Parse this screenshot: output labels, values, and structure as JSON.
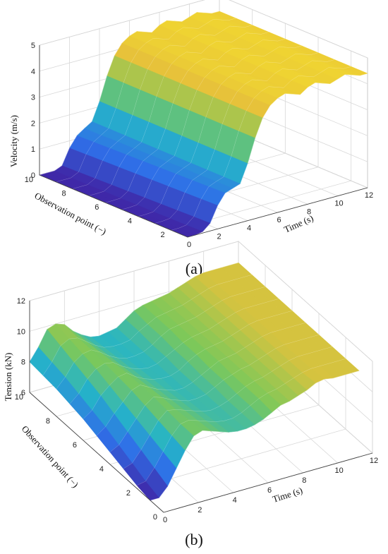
{
  "chart_data": [
    {
      "type": "surface3d",
      "panel": "a",
      "caption": "(a)",
      "xlabel": "Time (s)",
      "ylabel": "Observation point (−)",
      "zlabel": "Velocity (m/s)",
      "xticks": [
        0,
        2,
        4,
        6,
        8,
        10,
        12
      ],
      "yticks": [
        2,
        4,
        6,
        8,
        10
      ],
      "zticks": [
        0,
        1,
        2,
        3,
        4,
        5
      ],
      "xlim": [
        0,
        12
      ],
      "ylim": [
        1,
        10
      ],
      "zlim": [
        0,
        5
      ],
      "colormap": [
        "#3f28a8",
        "#2f6fe8",
        "#25b4c8",
        "#7cc85a",
        "#e7c23a",
        "#f5e12c"
      ],
      "observation_points": [
        1,
        2,
        3,
        4,
        5,
        6,
        7,
        8,
        9,
        10
      ],
      "time": [
        0,
        0.5,
        1,
        1.5,
        2,
        2.5,
        3,
        3.5,
        4,
        4.5,
        5,
        5.5,
        6,
        6.5,
        7,
        7.5,
        8,
        8.5,
        9,
        9.5,
        10,
        10.5,
        11,
        11.5,
        12
      ],
      "series": [
        {
          "values": [
            0,
            0,
            0.05,
            0.3,
            0.9,
            1.3,
            1.4,
            1.5,
            2.2,
            3.1,
            3.8,
            4.2,
            4.4,
            4.5,
            4.4,
            4.3,
            4.5,
            4.6,
            4.5,
            4.4,
            4.5,
            4.6,
            4.5,
            4.4,
            4.4
          ]
        },
        {
          "values": [
            0,
            0,
            0.04,
            0.28,
            0.88,
            1.28,
            1.4,
            1.5,
            2.2,
            3.1,
            3.8,
            4.2,
            4.4,
            4.5,
            4.4,
            4.3,
            4.5,
            4.6,
            4.5,
            4.4,
            4.5,
            4.6,
            4.5,
            4.4,
            4.4
          ]
        },
        {
          "values": [
            0,
            0,
            0.03,
            0.26,
            0.86,
            1.26,
            1.38,
            1.5,
            2.2,
            3.1,
            3.8,
            4.2,
            4.4,
            4.5,
            4.4,
            4.3,
            4.5,
            4.6,
            4.5,
            4.4,
            4.5,
            4.6,
            4.5,
            4.4,
            4.4
          ]
        },
        {
          "values": [
            0,
            0,
            0.02,
            0.24,
            0.84,
            1.24,
            1.38,
            1.5,
            2.2,
            3.1,
            3.8,
            4.2,
            4.4,
            4.5,
            4.4,
            4.3,
            4.5,
            4.6,
            4.5,
            4.4,
            4.5,
            4.6,
            4.5,
            4.4,
            4.4
          ]
        },
        {
          "values": [
            0,
            0,
            0.02,
            0.22,
            0.82,
            1.22,
            1.36,
            1.5,
            2.2,
            3.1,
            3.8,
            4.2,
            4.4,
            4.5,
            4.4,
            4.3,
            4.5,
            4.6,
            4.5,
            4.4,
            4.5,
            4.6,
            4.5,
            4.4,
            4.4
          ]
        },
        {
          "values": [
            0,
            0,
            0.01,
            0.2,
            0.8,
            1.2,
            1.36,
            1.5,
            2.2,
            3.1,
            3.8,
            4.2,
            4.4,
            4.5,
            4.4,
            4.3,
            4.5,
            4.6,
            4.5,
            4.4,
            4.5,
            4.6,
            4.5,
            4.4,
            4.4
          ]
        },
        {
          "values": [
            0,
            0,
            0.01,
            0.18,
            0.78,
            1.18,
            1.34,
            1.5,
            2.2,
            3.1,
            3.8,
            4.2,
            4.4,
            4.5,
            4.4,
            4.3,
            4.5,
            4.6,
            4.5,
            4.4,
            4.5,
            4.6,
            4.5,
            4.4,
            4.4
          ]
        },
        {
          "values": [
            0,
            0,
            0.0,
            0.16,
            0.76,
            1.16,
            1.34,
            1.5,
            2.2,
            3.1,
            3.8,
            4.2,
            4.4,
            4.5,
            4.4,
            4.3,
            4.5,
            4.6,
            4.5,
            4.4,
            4.5,
            4.6,
            4.5,
            4.4,
            4.4
          ]
        },
        {
          "values": [
            0,
            0,
            0.0,
            0.14,
            0.74,
            1.14,
            1.32,
            1.5,
            2.2,
            3.1,
            3.8,
            4.2,
            4.4,
            4.5,
            4.4,
            4.3,
            4.5,
            4.6,
            4.5,
            4.4,
            4.5,
            4.6,
            4.5,
            4.4,
            4.4
          ]
        },
        {
          "values": [
            0,
            0,
            0.0,
            0.12,
            0.72,
            1.12,
            1.32,
            1.5,
            2.2,
            3.1,
            3.8,
            4.2,
            4.4,
            4.5,
            4.4,
            4.3,
            4.5,
            4.6,
            4.5,
            4.4,
            4.5,
            4.6,
            4.5,
            4.4,
            4.4
          ]
        }
      ]
    },
    {
      "type": "surface3d",
      "panel": "b",
      "caption": "(b)",
      "xlabel": "Time (s)",
      "ylabel": "Observation point (−)",
      "zlabel": "Tension (kN)",
      "xticks": [
        0,
        2,
        4,
        6,
        8,
        10,
        12
      ],
      "yticks": [
        0,
        2,
        4,
        6,
        8,
        10
      ],
      "zticks": [
        6,
        8,
        10,
        12
      ],
      "xlim": [
        0,
        12
      ],
      "ylim": [
        0,
        10
      ],
      "zlim": [
        6,
        12
      ],
      "colormap": [
        "#3f28a8",
        "#2f6fe8",
        "#25b4c8",
        "#7cc85a",
        "#e7c23a",
        "#f5e12c"
      ],
      "observation_points": [
        1,
        2,
        3,
        4,
        5,
        6,
        7,
        8,
        9,
        10
      ],
      "time": [
        0,
        0.5,
        1,
        1.5,
        2,
        2.5,
        3,
        3.5,
        4,
        4.5,
        5,
        5.5,
        6,
        6.5,
        7,
        7.5,
        8,
        8.5,
        9,
        9.5,
        10,
        10.5,
        11,
        11.5,
        12
      ],
      "series": [
        {
          "values": [
            6.0,
            6.0,
            6.6,
            7.6,
            8.6,
            9.4,
            9.6,
            9.4,
            9.2,
            9.0,
            8.9,
            8.9,
            9.0,
            9.2,
            9.5,
            9.8,
            9.9,
            10.1,
            10.3,
            10.6,
            10.7,
            10.6,
            10.6,
            10.6,
            10.6
          ]
        },
        {
          "values": [
            6.2,
            6.3,
            7.0,
            7.9,
            8.8,
            9.4,
            9.5,
            9.3,
            9.1,
            8.9,
            8.8,
            8.8,
            9.0,
            9.3,
            9.6,
            9.8,
            9.9,
            10.1,
            10.3,
            10.5,
            10.6,
            10.6,
            10.6,
            10.6,
            10.6
          ]
        },
        {
          "values": [
            6.5,
            6.7,
            7.4,
            8.2,
            9.0,
            9.5,
            9.4,
            9.2,
            9.0,
            8.8,
            8.7,
            8.8,
            9.0,
            9.3,
            9.6,
            9.8,
            9.9,
            10.1,
            10.3,
            10.5,
            10.6,
            10.6,
            10.6,
            10.6,
            10.6
          ]
        },
        {
          "values": [
            6.8,
            7.1,
            7.8,
            8.5,
            9.2,
            9.6,
            9.4,
            9.1,
            8.9,
            8.7,
            8.7,
            8.8,
            9.1,
            9.4,
            9.6,
            9.8,
            9.9,
            10.1,
            10.3,
            10.5,
            10.6,
            10.6,
            10.6,
            10.6,
            10.6
          ]
        },
        {
          "values": [
            7.1,
            7.5,
            8.2,
            8.8,
            9.4,
            9.6,
            9.3,
            9.0,
            8.8,
            8.6,
            8.6,
            8.8,
            9.1,
            9.4,
            9.7,
            9.8,
            9.9,
            10.1,
            10.3,
            10.5,
            10.6,
            10.6,
            10.6,
            10.6,
            10.6
          ]
        },
        {
          "values": [
            7.4,
            7.8,
            8.6,
            9.1,
            9.5,
            9.6,
            9.2,
            8.9,
            8.7,
            8.6,
            8.6,
            8.8,
            9.2,
            9.5,
            9.7,
            9.8,
            9.9,
            10.1,
            10.3,
            10.5,
            10.6,
            10.6,
            10.6,
            10.6,
            10.6
          ]
        },
        {
          "values": [
            7.6,
            8.1,
            8.9,
            9.4,
            9.6,
            9.5,
            9.1,
            8.8,
            8.6,
            8.5,
            8.6,
            8.9,
            9.2,
            9.5,
            9.7,
            9.8,
            9.9,
            10.1,
            10.3,
            10.5,
            10.6,
            10.6,
            10.6,
            10.6,
            10.6
          ]
        },
        {
          "values": [
            7.8,
            8.4,
            9.2,
            9.6,
            9.7,
            9.4,
            9.0,
            8.7,
            8.5,
            8.5,
            8.6,
            8.9,
            9.3,
            9.6,
            9.7,
            9.8,
            9.9,
            10.1,
            10.3,
            10.5,
            10.6,
            10.6,
            10.6,
            10.6,
            10.6
          ]
        },
        {
          "values": [
            7.9,
            8.6,
            9.5,
            9.8,
            9.7,
            9.3,
            8.9,
            8.6,
            8.5,
            8.5,
            8.6,
            9.0,
            9.3,
            9.6,
            9.7,
            9.8,
            9.9,
            10.1,
            10.3,
            10.5,
            10.6,
            10.6,
            10.6,
            10.6,
            10.6
          ]
        },
        {
          "values": [
            8.0,
            8.8,
            9.8,
            10.0,
            9.8,
            9.2,
            8.8,
            8.5,
            8.4,
            8.5,
            8.6,
            9.0,
            9.4,
            9.6,
            9.7,
            9.8,
            9.9,
            10.1,
            10.3,
            10.5,
            10.6,
            10.6,
            10.6,
            10.6,
            10.6
          ]
        }
      ]
    }
  ]
}
